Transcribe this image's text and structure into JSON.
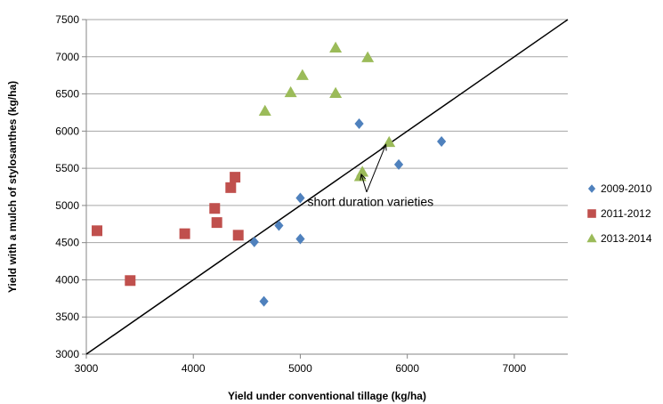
{
  "chart_data": {
    "type": "scatter",
    "title": "",
    "xlabel": "Yield under conventional tillage (kg/ha)",
    "ylabel": "Yield with a mulch of stylosanthes (kg/ha)",
    "xlim": [
      3000,
      7500
    ],
    "ylim": [
      3000,
      7500
    ],
    "xticks": [
      3000,
      4000,
      5000,
      6000,
      7000
    ],
    "yticks": [
      3000,
      3500,
      4000,
      4500,
      5000,
      5500,
      6000,
      6500,
      7000,
      7500
    ],
    "grid": "horizontal",
    "legend_position": "right",
    "series": [
      {
        "name": "2009-2010",
        "color": "#4f81bd",
        "marker": "diamond",
        "points": [
          [
            4570,
            4510
          ],
          [
            4660,
            3710
          ],
          [
            4800,
            4730
          ],
          [
            5000,
            5100
          ],
          [
            5000,
            4550
          ],
          [
            5550,
            6100
          ],
          [
            5920,
            5550
          ],
          [
            6320,
            5860
          ]
        ]
      },
      {
        "name": "2011-2012",
        "color": "#c0504d",
        "marker": "square",
        "points": [
          [
            3100,
            4660
          ],
          [
            3410,
            3990
          ],
          [
            3920,
            4620
          ],
          [
            4200,
            4960
          ],
          [
            4220,
            4770
          ],
          [
            4350,
            5240
          ],
          [
            4390,
            5380
          ],
          [
            4420,
            4600
          ]
        ]
      },
      {
        "name": "2013-2014",
        "color": "#9bbb59",
        "marker": "triangle",
        "points": [
          [
            4670,
            6270
          ],
          [
            4910,
            6520
          ],
          [
            5020,
            6750
          ],
          [
            5330,
            7120
          ],
          [
            5330,
            6510
          ],
          [
            5560,
            5390
          ],
          [
            5580,
            5450
          ],
          [
            5630,
            6990
          ],
          [
            5830,
            5850
          ]
        ]
      }
    ],
    "reference_line": {
      "from": [
        3000,
        3000
      ],
      "to": [
        7500,
        7500
      ],
      "color": "#000000"
    },
    "annotation": {
      "text": "short duration varieties",
      "anchor": [
        5400,
        5050
      ],
      "arrow_from": [
        5620,
        5180
      ],
      "arrow_targets": [
        [
          5800,
          5820
        ],
        [
          5570,
          5420
        ]
      ]
    }
  }
}
